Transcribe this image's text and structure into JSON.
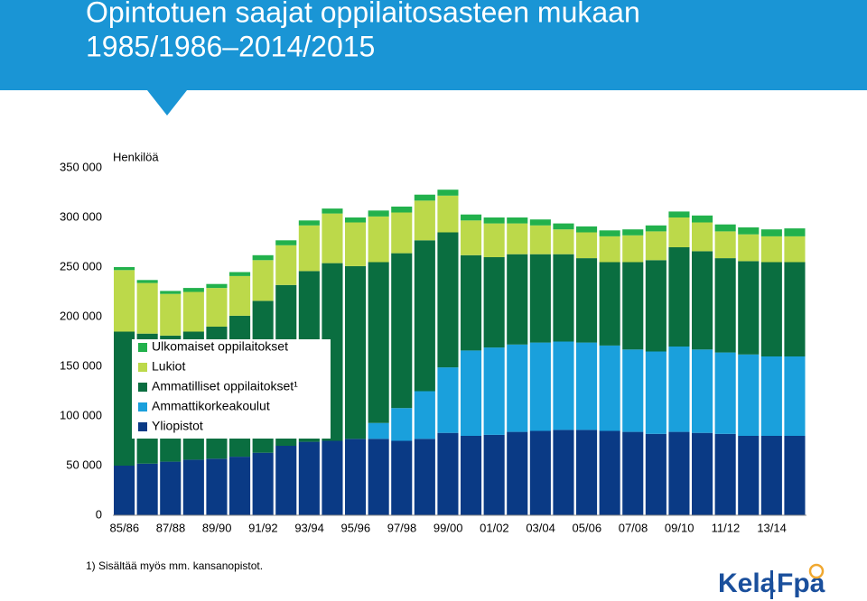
{
  "chart_data": {
    "type": "stacked_bar",
    "title_lines": [
      "Opintotuen saajat oppilaitosasteen mukaan",
      "1985/1986–2014/2015"
    ],
    "ylabel": "Henkilöä",
    "footnote": "1) Sisältää myös mm. kansanopistot.",
    "logo": [
      "Kela",
      "Fpa"
    ],
    "categories": [
      "85/86",
      null,
      "87/88",
      null,
      "89/90",
      null,
      "91/92",
      null,
      "93/94",
      null,
      "95/96",
      null,
      "97/98",
      null,
      "99/00",
      null,
      "01/02",
      null,
      "03/04",
      null,
      "05/06",
      null,
      "07/08",
      null,
      "09/10",
      null,
      "11/12",
      null,
      "13/14",
      null
    ],
    "series": [
      {
        "name": "Ulkomaiset oppilaitokset",
        "color": "#22b14c",
        "values": [
          3000,
          3000,
          3000,
          4000,
          4000,
          4000,
          5000,
          5000,
          5000,
          5000,
          5000,
          6000,
          6000,
          6000,
          6000,
          6000,
          6000,
          6000,
          6000,
          6000,
          6000,
          6000,
          6000,
          6000,
          6000,
          7000,
          7000,
          7000,
          7000,
          8000
        ]
      },
      {
        "name": "Lukiot",
        "color": "#bcd94a",
        "values": [
          62000,
          51000,
          42000,
          40000,
          39000,
          40000,
          41000,
          40000,
          46000,
          50000,
          44000,
          46000,
          41000,
          40000,
          37000,
          35000,
          34000,
          31000,
          29000,
          25000,
          26000,
          26000,
          27000,
          29000,
          30000,
          29000,
          27000,
          27000,
          26000,
          26000
        ]
      },
      {
        "name": "Ammatilliset oppilaitokset¹",
        "color": "#0a6e40",
        "values": [
          135000,
          131000,
          127000,
          129000,
          133000,
          142000,
          153000,
          162000,
          172000,
          179000,
          174000,
          162000,
          156000,
          152000,
          136000,
          96000,
          91000,
          91000,
          89000,
          88000,
          85000,
          84000,
          88000,
          92000,
          100000,
          99000,
          95000,
          94000,
          95000,
          95000
        ]
      },
      {
        "name": "Ammattikorkeakoulut",
        "color": "#1aa0dc",
        "values": [
          0,
          0,
          0,
          0,
          0,
          0,
          0,
          0,
          0,
          0,
          0,
          16000,
          33000,
          48000,
          66000,
          86000,
          88000,
          88000,
          89000,
          89000,
          88000,
          86000,
          83000,
          83000,
          86000,
          84000,
          82000,
          82000,
          80000,
          80000
        ]
      },
      {
        "name": "Yliopistot",
        "color": "#0a3a85",
        "values": [
          50000,
          52000,
          54000,
          56000,
          57000,
          59000,
          63000,
          70000,
          74000,
          75000,
          77000,
          77000,
          75000,
          77000,
          83000,
          80000,
          81000,
          84000,
          85000,
          86000,
          86000,
          85000,
          84000,
          82000,
          84000,
          83000,
          82000,
          80000,
          80000,
          80000
        ]
      }
    ],
    "ylim": [
      0,
      350000
    ],
    "yticks": [
      0,
      {
        "value": 50000,
        "label": "50 000"
      },
      {
        "value": 100000,
        "label": "100 000"
      },
      {
        "value": 150000,
        "label": "150 000"
      },
      {
        "value": 200000,
        "label": "200 000"
      },
      {
        "value": 250000,
        "label": "250 000"
      },
      {
        "value": 300000,
        "label": "300 000"
      },
      {
        "value": 350000,
        "label": "350 000"
      }
    ],
    "legend": "inside-left"
  }
}
